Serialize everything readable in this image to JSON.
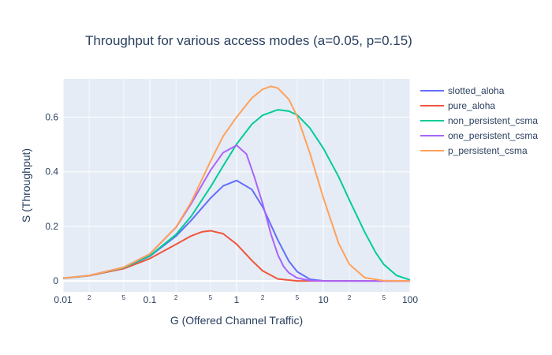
{
  "chart_data": {
    "type": "line",
    "title": "Throughput for various access modes (a=0.05, p=0.15)",
    "xlabel": "G (Offered Channel Traffic)",
    "ylabel": "S (Throughput)",
    "x_scale": "log",
    "xlim": [
      0.01,
      100
    ],
    "ylim": [
      -0.04,
      0.74
    ],
    "x_major_ticks": [
      {
        "value": 0.01,
        "label": "0.01"
      },
      {
        "value": 0.1,
        "label": "0.1"
      },
      {
        "value": 1,
        "label": "1"
      },
      {
        "value": 10,
        "label": "10"
      },
      {
        "value": 100,
        "label": "100"
      }
    ],
    "x_minor_ticks": [
      {
        "value": 0.02,
        "label": "2"
      },
      {
        "value": 0.05,
        "label": "5"
      },
      {
        "value": 0.2,
        "label": "2"
      },
      {
        "value": 0.5,
        "label": "5"
      },
      {
        "value": 2,
        "label": "2"
      },
      {
        "value": 5,
        "label": "5"
      },
      {
        "value": 20,
        "label": "2"
      },
      {
        "value": 50,
        "label": "5"
      }
    ],
    "y_ticks": [
      {
        "value": 0,
        "label": "0"
      },
      {
        "value": 0.2,
        "label": "0.2"
      },
      {
        "value": 0.4,
        "label": "0.4"
      },
      {
        "value": 0.6,
        "label": "0.6"
      }
    ],
    "grid": true,
    "legend_position": "right",
    "series": [
      {
        "name": "slotted_aloha",
        "color": "#636efa",
        "points": [
          [
            0.01,
            0.0099
          ],
          [
            0.02,
            0.0196
          ],
          [
            0.05,
            0.0476
          ],
          [
            0.1,
            0.0905
          ],
          [
            0.2,
            0.164
          ],
          [
            0.3,
            0.222
          ],
          [
            0.5,
            0.303
          ],
          [
            0.7,
            0.348
          ],
          [
            1,
            0.368
          ],
          [
            1.5,
            0.335
          ],
          [
            2,
            0.271
          ],
          [
            3,
            0.149
          ],
          [
            4,
            0.073
          ],
          [
            5,
            0.034
          ],
          [
            7,
            0.0064
          ],
          [
            10,
            0.0005
          ],
          [
            20,
            0.0
          ],
          [
            100,
            0.0
          ]
        ]
      },
      {
        "name": "pure_aloha",
        "color": "#ef553b",
        "points": [
          [
            0.01,
            0.0098
          ],
          [
            0.02,
            0.0192
          ],
          [
            0.05,
            0.0452
          ],
          [
            0.1,
            0.0819
          ],
          [
            0.2,
            0.134
          ],
          [
            0.3,
            0.165
          ],
          [
            0.4,
            0.18
          ],
          [
            0.5,
            0.184
          ],
          [
            0.7,
            0.173
          ],
          [
            1,
            0.135
          ],
          [
            1.5,
            0.075
          ],
          [
            2,
            0.037
          ],
          [
            3,
            0.0074
          ],
          [
            5,
            0.0002
          ],
          [
            10,
            0.0
          ],
          [
            100,
            0.0
          ]
        ]
      },
      {
        "name": "non_persistent_csma",
        "color": "#00cc96",
        "points": [
          [
            0.01,
            0.0099
          ],
          [
            0.02,
            0.0197
          ],
          [
            0.05,
            0.0483
          ],
          [
            0.1,
            0.092
          ],
          [
            0.2,
            0.17
          ],
          [
            0.3,
            0.237
          ],
          [
            0.5,
            0.344
          ],
          [
            0.7,
            0.421
          ],
          [
            1,
            0.501
          ],
          [
            1.5,
            0.574
          ],
          [
            2,
            0.607
          ],
          [
            3,
            0.627
          ],
          [
            4,
            0.622
          ],
          [
            5,
            0.608
          ],
          [
            7,
            0.56
          ],
          [
            10,
            0.486
          ],
          [
            15,
            0.382
          ],
          [
            20,
            0.296
          ],
          [
            30,
            0.179
          ],
          [
            40,
            0.105
          ],
          [
            50,
            0.06
          ],
          [
            70,
            0.02
          ],
          [
            100,
            0.004
          ]
        ]
      },
      {
        "name": "one_persistent_csma",
        "color": "#ab63fa",
        "points": [
          [
            0.01,
            0.01
          ],
          [
            0.02,
            0.02
          ],
          [
            0.05,
            0.05
          ],
          [
            0.1,
            0.099
          ],
          [
            0.2,
            0.196
          ],
          [
            0.3,
            0.283
          ],
          [
            0.5,
            0.405
          ],
          [
            0.7,
            0.47
          ],
          [
            1,
            0.497
          ],
          [
            1.3,
            0.465
          ],
          [
            1.6,
            0.382
          ],
          [
            2,
            0.283
          ],
          [
            2.5,
            0.17
          ],
          [
            3,
            0.095
          ],
          [
            3.5,
            0.052
          ],
          [
            4,
            0.03
          ],
          [
            5,
            0.011
          ],
          [
            7,
            0.0015
          ],
          [
            10,
            0.0
          ],
          [
            100,
            0.0
          ]
        ]
      },
      {
        "name": "p_persistent_csma",
        "color": "#ffa15a",
        "points": [
          [
            0.01,
            0.01
          ],
          [
            0.02,
            0.02
          ],
          [
            0.05,
            0.05
          ],
          [
            0.1,
            0.099
          ],
          [
            0.2,
            0.197
          ],
          [
            0.3,
            0.289
          ],
          [
            0.5,
            0.438
          ],
          [
            0.7,
            0.53
          ],
          [
            1,
            0.6
          ],
          [
            1.5,
            0.67
          ],
          [
            2,
            0.702
          ],
          [
            2.5,
            0.713
          ],
          [
            3,
            0.706
          ],
          [
            4,
            0.665
          ],
          [
            5,
            0.603
          ],
          [
            7,
            0.468
          ],
          [
            10,
            0.305
          ],
          [
            15,
            0.138
          ],
          [
            20,
            0.061
          ],
          [
            30,
            0.012
          ],
          [
            50,
            0.001
          ],
          [
            100,
            0.0
          ]
        ]
      }
    ]
  }
}
